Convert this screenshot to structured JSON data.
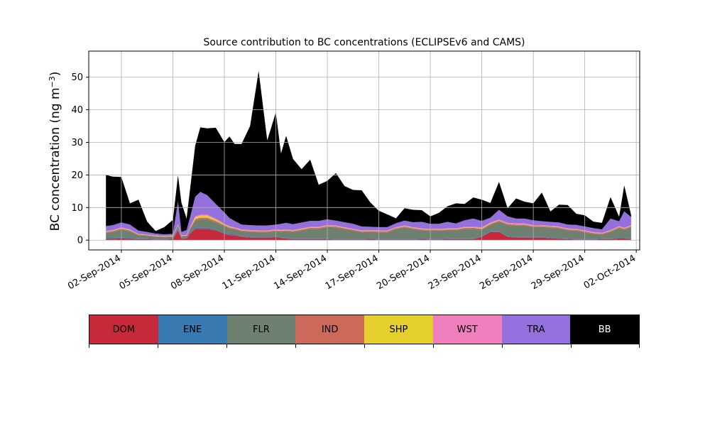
{
  "chart_data": {
    "type": "area",
    "stacked": true,
    "title": "Source contribution to BC concentrations (ECLIPSEv6 and CAMS)",
    "xlabel": "",
    "ylabel": "BC concentration (ng m⁻³)",
    "ylim": [
      -3,
      58
    ],
    "yticks": [
      0,
      10,
      20,
      30,
      40,
      50
    ],
    "xlim_days": [
      -1.9,
      30.2
    ],
    "xtick_labels": [
      "02-Sep-2014",
      "05-Sep-2014",
      "08-Sep-2014",
      "11-Sep-2014",
      "14-Sep-2014",
      "17-Sep-2014",
      "20-Sep-2014",
      "23-Sep-2014",
      "26-Sep-2014",
      "29-Sep-2014",
      "02-Oct-2014"
    ],
    "xtick_days": [
      0,
      3,
      6,
      9,
      12,
      15,
      18,
      21,
      24,
      27,
      30
    ],
    "x_day_note": "days since 02-Sep-2014",
    "grid": true,
    "x": [
      -0.9,
      -0.5,
      0,
      0.5,
      1,
      1.5,
      2,
      2.5,
      3,
      3.3,
      3.5,
      3.8,
      4,
      4.3,
      4.6,
      5,
      5.5,
      6,
      6.3,
      6.6,
      7,
      7.5,
      8,
      8.5,
      9,
      9.3,
      9.6,
      10,
      10.5,
      11,
      11.5,
      12,
      12.5,
      13,
      13.5,
      14,
      14.5,
      15,
      15.5,
      16,
      16.5,
      17,
      17.5,
      18,
      18.5,
      19,
      19.5,
      20,
      20.5,
      21,
      21.5,
      22,
      22.5,
      23,
      23.5,
      24,
      24.5,
      25,
      25.5,
      26,
      26.5,
      27,
      27.5,
      28,
      28.5,
      29,
      29.3,
      29.7
    ],
    "series": [
      {
        "name": "DOM",
        "color": "#c62a3a",
        "values": [
          0.4,
          0.4,
          0.5,
          0.4,
          0.3,
          0.3,
          0.2,
          0.2,
          0.3,
          3,
          0.4,
          0.5,
          2,
          3.5,
          3.5,
          3.5,
          3,
          2,
          1.5,
          1.5,
          1,
          0.8,
          0.7,
          0.7,
          1,
          0.6,
          0.5,
          0.3,
          0.3,
          0.3,
          0.3,
          0.3,
          0.2,
          0.2,
          0.2,
          0.2,
          0.3,
          0.2,
          0.2,
          0.2,
          0.2,
          0.2,
          0.3,
          0.2,
          0.2,
          0.3,
          0.3,
          0.3,
          0.3,
          1,
          2.5,
          2.5,
          1,
          0.8,
          0.8,
          0.8,
          0.8,
          0.6,
          0.4,
          0.3,
          0.2,
          0.2,
          0.2,
          0.3,
          0.3,
          0.5,
          0.5,
          0.3
        ]
      },
      {
        "name": "ENE",
        "color": "#3a7ab3",
        "values": [
          0.3,
          0.3,
          0.3,
          0.3,
          0.2,
          0.2,
          0.2,
          0.2,
          0.2,
          0.3,
          0.2,
          0.2,
          0.3,
          0.4,
          0.4,
          0.4,
          0.3,
          0.3,
          0.3,
          0.3,
          0.2,
          0.2,
          0.2,
          0.2,
          0.2,
          0.2,
          0.2,
          0.2,
          0.2,
          0.2,
          0.2,
          0.2,
          0.2,
          0.2,
          0.2,
          0.2,
          0.2,
          0.2,
          0.2,
          0.2,
          0.2,
          0.2,
          0.2,
          0.2,
          0.2,
          0.2,
          0.2,
          0.2,
          0.2,
          0.2,
          0.2,
          0.2,
          0.2,
          0.2,
          0.2,
          0.2,
          0.2,
          0.2,
          0.2,
          0.2,
          0.2,
          0.2,
          0.2,
          0.2,
          0.2,
          0.2,
          0.2,
          0.2
        ]
      },
      {
        "name": "FLR",
        "color": "#6e8070",
        "values": [
          1.5,
          1.8,
          2.5,
          2,
          1,
          0.8,
          0.6,
          0.5,
          0.5,
          1,
          0.5,
          0.5,
          1,
          2,
          2.5,
          2.5,
          2.2,
          2,
          1.8,
          1.5,
          1.5,
          1.5,
          1.5,
          1.5,
          1.5,
          1.8,
          2,
          2,
          2.5,
          3,
          3,
          3.5,
          3.5,
          3,
          2.5,
          2,
          2,
          2,
          2,
          3,
          3.5,
          3,
          2.5,
          2.5,
          2.5,
          2.5,
          2.5,
          3,
          3,
          2,
          2,
          3,
          3.5,
          3.5,
          3.5,
          3,
          3,
          3,
          3,
          2.5,
          2.5,
          2,
          1.5,
          1.2,
          2,
          3,
          2.5,
          3.5
        ]
      },
      {
        "name": "IND",
        "color": "#cc6a5a",
        "values": [
          0.3,
          0.3,
          0.3,
          0.3,
          0.2,
          0.2,
          0.2,
          0.2,
          0.2,
          0.3,
          0.2,
          0.2,
          0.3,
          0.5,
          0.5,
          0.5,
          0.4,
          0.3,
          0.3,
          0.3,
          0.3,
          0.3,
          0.3,
          0.3,
          0.3,
          0.3,
          0.3,
          0.3,
          0.3,
          0.3,
          0.3,
          0.3,
          0.3,
          0.3,
          0.3,
          0.3,
          0.3,
          0.3,
          0.3,
          0.3,
          0.3,
          0.3,
          0.3,
          0.3,
          0.3,
          0.3,
          0.3,
          0.3,
          0.3,
          0.3,
          0.3,
          0.3,
          0.3,
          0.3,
          0.3,
          0.3,
          0.3,
          0.3,
          0.3,
          0.3,
          0.3,
          0.3,
          0.3,
          0.3,
          0.3,
          0.3,
          0.3,
          0.3
        ]
      },
      {
        "name": "SHP",
        "color": "#e5cf2c",
        "values": [
          0.1,
          0.1,
          0.1,
          0.1,
          0.1,
          0.1,
          0.1,
          0.1,
          0.1,
          0.1,
          0.1,
          0.1,
          0.1,
          0.6,
          0.6,
          0.6,
          0.4,
          0.2,
          0.2,
          0.1,
          0.1,
          0.1,
          0.1,
          0.1,
          0.1,
          0.1,
          0.1,
          0.1,
          0.1,
          0.1,
          0.1,
          0.1,
          0.1,
          0.1,
          0.1,
          0.1,
          0.1,
          0.1,
          0.1,
          0.1,
          0.1,
          0.1,
          0.1,
          0.1,
          0.1,
          0.1,
          0.1,
          0.1,
          0.1,
          0.2,
          0.2,
          0.1,
          0.1,
          0.1,
          0.1,
          0.1,
          0.1,
          0.1,
          0.1,
          0.1,
          0.1,
          0.1,
          0.1,
          0.1,
          0.1,
          0.1,
          0.1,
          0.1
        ]
      },
      {
        "name": "WST",
        "color": "#f07fbd",
        "values": [
          0.2,
          0.2,
          0.2,
          0.2,
          0.1,
          0.1,
          0.1,
          0.1,
          0.1,
          0.2,
          0.1,
          0.1,
          0.2,
          0.3,
          0.3,
          0.3,
          0.3,
          0.2,
          0.2,
          0.2,
          0.2,
          0.2,
          0.2,
          0.2,
          0.2,
          0.2,
          0.2,
          0.2,
          0.2,
          0.2,
          0.2,
          0.2,
          0.2,
          0.2,
          0.2,
          0.2,
          0.2,
          0.2,
          0.2,
          0.2,
          0.2,
          0.2,
          0.2,
          0.2,
          0.2,
          0.2,
          0.2,
          0.2,
          0.2,
          0.2,
          0.2,
          0.2,
          0.2,
          0.2,
          0.2,
          0.2,
          0.2,
          0.2,
          0.2,
          0.2,
          0.2,
          0.2,
          0.2,
          0.2,
          0.2,
          0.2,
          0.2,
          0.2
        ]
      },
      {
        "name": "TRA",
        "color": "#9370dc",
        "values": [
          1.5,
          1.5,
          1.5,
          1.5,
          1,
          0.8,
          0.6,
          0.5,
          0.5,
          7,
          1,
          1.5,
          3,
          6,
          7,
          6,
          4.5,
          3.5,
          2.5,
          2,
          1.5,
          1.5,
          1.5,
          1.5,
          1.5,
          1.8,
          2,
          1.8,
          1.8,
          1.8,
          1.8,
          1.8,
          1.5,
          1.5,
          1.5,
          1.2,
          1,
          1,
          1,
          1.2,
          1.5,
          1.5,
          2,
          1.5,
          1.5,
          2,
          1.5,
          2,
          2.5,
          2,
          1.5,
          3,
          2,
          1.5,
          1.5,
          1.5,
          1.2,
          1.2,
          1.2,
          1.2,
          1.2,
          1.2,
          1.2,
          1,
          3.5,
          1.5,
          5,
          2.5
        ]
      },
      {
        "name": "BB",
        "color": "#000000",
        "values": [
          15.7,
          14.9,
          14,
          6.5,
          9.5,
          3.2,
          0.8,
          2.2,
          4.3,
          8,
          9,
          3.5,
          8.6,
          15.7,
          19.8,
          20.5,
          23.4,
          21.6,
          25,
          23.6,
          24.7,
          30.4,
          47.4,
          26.1,
          34.4,
          21.6,
          26.7,
          20,
          16.4,
          18.8,
          11.1,
          11.8,
          14.6,
          11.1,
          10.4,
          11.1,
          7.5,
          5,
          3.9,
          1.5,
          3.8,
          3.8,
          3.6,
          2.3,
          3.4,
          4.8,
          6.2,
          5,
          6.5,
          6.5,
          4.5,
          8.6,
          2.5,
          6.2,
          5.2,
          5.2,
          8.8,
          3.2,
          5.5,
          6,
          3.4,
          3.4,
          2,
          2,
          6.6,
          1.4,
          8,
          0.6
        ]
      }
    ]
  },
  "legend": {
    "labels": [
      "DOM",
      "ENE",
      "FLR",
      "IND",
      "SHP",
      "WST",
      "TRA",
      "BB"
    ],
    "colors": [
      "#c62a3a",
      "#3a7ab3",
      "#6e8070",
      "#cc6a5a",
      "#e5cf2c",
      "#f07fbd",
      "#9370dc",
      "#000000"
    ],
    "text_colors": [
      "#000000",
      "#000000",
      "#000000",
      "#000000",
      "#000000",
      "#000000",
      "#000000",
      "#ffffff"
    ]
  }
}
